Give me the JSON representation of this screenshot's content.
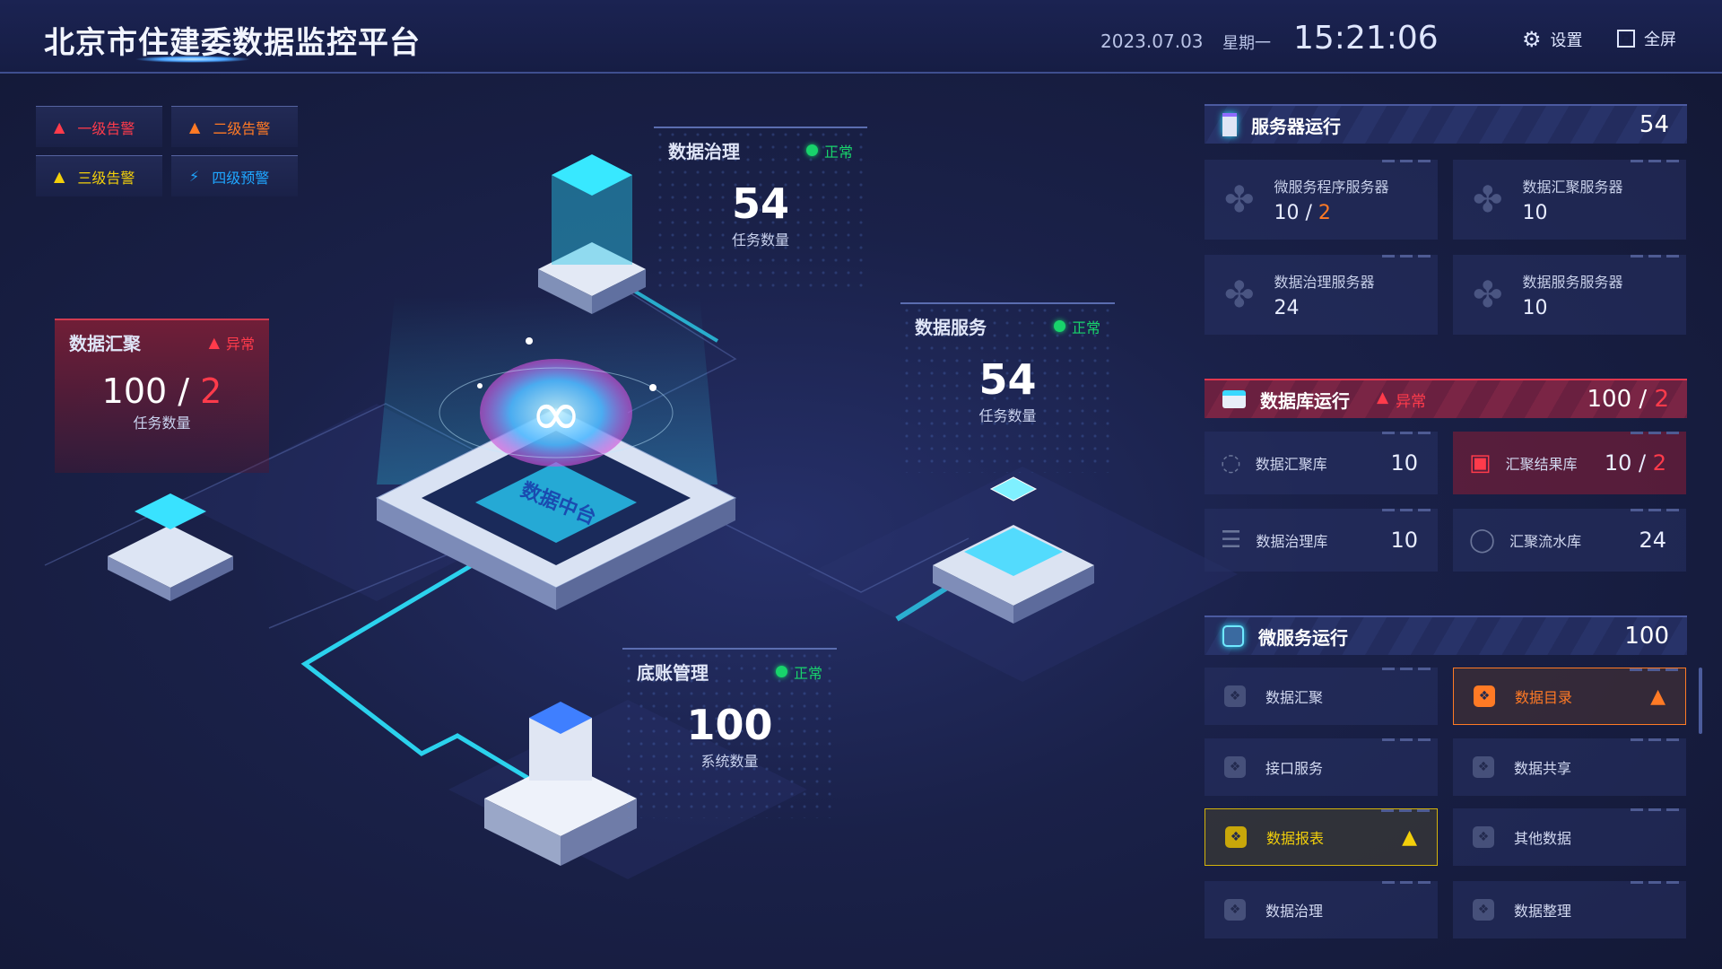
{
  "header": {
    "title": "北京市住建委数据监控平台",
    "date": "2023.07.03",
    "weekday": "星期一",
    "time": "15:21:06",
    "settings_label": "设置",
    "fullscreen_label": "全屏"
  },
  "alerts": [
    {
      "label": "一级告警",
      "color": "#ff3b4b",
      "icon": "warning-triangle-icon"
    },
    {
      "label": "二级告警",
      "color": "#ff7a25",
      "icon": "warning-triangle-icon"
    },
    {
      "label": "三级告警",
      "color": "#f2cf0b",
      "icon": "warning-triangle-icon"
    },
    {
      "label": "四级预警",
      "color": "#1fa6ff",
      "icon": "siren-icon"
    }
  ],
  "center": {
    "platform_label": "数据中台",
    "governance": {
      "title": "数据治理",
      "status": "正常",
      "value": "54",
      "unit": "任务数量"
    },
    "service": {
      "title": "数据服务",
      "status": "正常",
      "value": "54",
      "unit": "任务数量"
    },
    "ledger": {
      "title": "底账管理",
      "status": "正常",
      "value": "100",
      "unit": "系统数量"
    },
    "aggregation": {
      "title": "数据汇聚",
      "status": "异常",
      "value": "100",
      "value_error": "2",
      "separator": " / ",
      "unit": "任务数量"
    }
  },
  "servers": {
    "title": "服务器运行",
    "count": "54",
    "items": [
      {
        "label": "微服务程序服务器",
        "value": "10",
        "error": "2"
      },
      {
        "label": "数据汇聚服务器",
        "value": "10"
      },
      {
        "label": "数据治理服务器",
        "value": "24"
      },
      {
        "label": "数据服务服务器",
        "value": "10"
      }
    ]
  },
  "database": {
    "title": "数据库运行",
    "status": "异常",
    "count": "100",
    "error": "2",
    "items": [
      {
        "label": "数据汇聚库",
        "value": "10",
        "icon": "network-icon"
      },
      {
        "label": "汇聚结果库",
        "value": "10",
        "error": "2",
        "icon": "monitor-chart-icon"
      },
      {
        "label": "数据治理库",
        "value": "10",
        "icon": "list-icon"
      },
      {
        "label": "汇聚流水库",
        "value": "24",
        "icon": "cycle-icon"
      }
    ]
  },
  "microservices": {
    "title": "微服务运行",
    "count": "100",
    "items": [
      {
        "label": "数据汇聚"
      },
      {
        "label": "数据目录",
        "state": "warning-orange"
      },
      {
        "label": "接口服务"
      },
      {
        "label": "数据共享"
      },
      {
        "label": "数据报表",
        "state": "warning-yellow"
      },
      {
        "label": "其他数据"
      },
      {
        "label": "数据治理"
      },
      {
        "label": "数据整理"
      }
    ]
  },
  "colors": {
    "error": "#ff3b4b",
    "orange": "#ff7a25",
    "yellow": "#f2cf0b",
    "ok": "#18d36b",
    "accent": "#2fe3ff"
  }
}
